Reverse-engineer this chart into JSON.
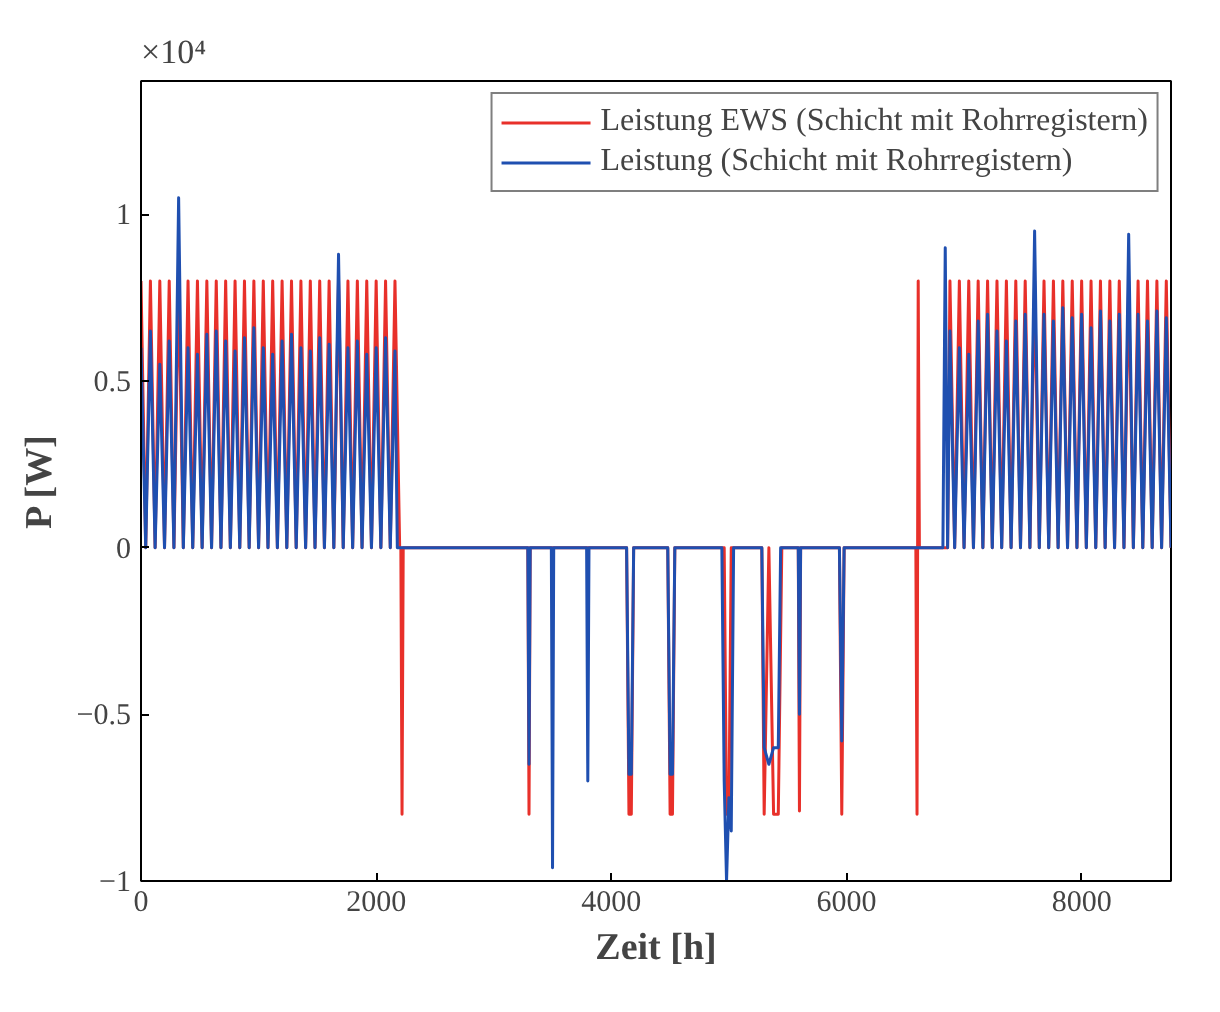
{
  "chart_data": {
    "type": "line",
    "xlabel": "Zeit [h]",
    "ylabel": "P [W]",
    "annotations": [
      "×10⁴"
    ],
    "xlim": [
      0,
      8760
    ],
    "ylim": [
      -1,
      1.4
    ],
    "xticks": [
      0,
      2000,
      4000,
      6000,
      8000
    ],
    "yticks": [
      -1,
      -0.5,
      0,
      0.5,
      1
    ],
    "grid": false,
    "legend": "top right",
    "series": [
      {
        "name": "Leistung EWS (Schicht mit Rohrregistern)",
        "color": "#e8302a",
        "x": [
          0,
          40,
          80,
          120,
          160,
          200,
          240,
          280,
          320,
          360,
          400,
          440,
          480,
          520,
          560,
          600,
          640,
          680,
          720,
          760,
          800,
          840,
          880,
          920,
          960,
          1000,
          1040,
          1080,
          1120,
          1160,
          1200,
          1240,
          1280,
          1320,
          1360,
          1400,
          1440,
          1480,
          1520,
          1560,
          1600,
          1640,
          1680,
          1720,
          1760,
          1800,
          1840,
          1880,
          1920,
          1960,
          2000,
          2040,
          2080,
          2120,
          2160,
          2200,
          2210,
          2220,
          2230,
          3290,
          3300,
          3310,
          4130,
          4150,
          4170,
          4190,
          4480,
          4500,
          4520,
          4540,
          4960,
          4980,
          5000,
          5020,
          5280,
          5300,
          5340,
          5380,
          5420,
          5450,
          5590,
          5600,
          5610,
          5940,
          5960,
          5980,
          6590,
          6600,
          6610,
          6620,
          6860,
          6880,
          6920,
          6960,
          7000,
          7040,
          7080,
          7120,
          7160,
          7200,
          7240,
          7280,
          7320,
          7360,
          7400,
          7440,
          7480,
          7520,
          7560,
          7600,
          7640,
          7680,
          7720,
          7760,
          7800,
          7840,
          7880,
          7920,
          7960,
          8000,
          8040,
          8080,
          8120,
          8160,
          8200,
          8240,
          8280,
          8320,
          8360,
          8400,
          8440,
          8480,
          8520,
          8560,
          8600,
          8640,
          8680,
          8720,
          8760
        ],
        "values": [
          0.8,
          0,
          0.8,
          0,
          0.8,
          0,
          0.8,
          0,
          0.8,
          0,
          0.8,
          0,
          0.8,
          0,
          0.8,
          0,
          0.8,
          0,
          0.8,
          0,
          0.8,
          0,
          0.8,
          0,
          0.8,
          0,
          0.8,
          0,
          0.8,
          0,
          0.8,
          0,
          0.8,
          0,
          0.8,
          0,
          0.8,
          0,
          0.8,
          0,
          0.8,
          0,
          0.8,
          0,
          0.8,
          0,
          0.8,
          0,
          0.8,
          0,
          0.8,
          0,
          0.8,
          0,
          0.8,
          0,
          0,
          -0.8,
          0,
          0,
          -0.8,
          0,
          0,
          -0.8,
          -0.8,
          0,
          0,
          -0.8,
          -0.8,
          0,
          0,
          -0.8,
          -0.8,
          0,
          0,
          -0.8,
          0,
          -0.8,
          -0.8,
          0,
          0,
          -0.79,
          0,
          0,
          -0.8,
          0,
          0,
          -0.8,
          0.8,
          0,
          0,
          0.8,
          0,
          0.8,
          0,
          0.8,
          0,
          0.8,
          0,
          0.8,
          0,
          0.8,
          0,
          0.8,
          0,
          0.8,
          0,
          0.8,
          0,
          0.8,
          0,
          0.8,
          0,
          0.8,
          0,
          0.8,
          0,
          0.8,
          0,
          0.8,
          0,
          0.8,
          0,
          0.8,
          0,
          0.8,
          0,
          0.8,
          0,
          0.8,
          0,
          0.8,
          0,
          0.8,
          0,
          0.8,
          0,
          0.8,
          0
        ]
      },
      {
        "name": "Leistung (Schicht mit Rohrregistern)",
        "color": "#1f4fb0",
        "x": [
          0,
          40,
          80,
          120,
          160,
          200,
          240,
          280,
          320,
          360,
          400,
          440,
          480,
          520,
          560,
          600,
          640,
          680,
          720,
          760,
          800,
          840,
          880,
          920,
          960,
          1000,
          1040,
          1080,
          1120,
          1160,
          1200,
          1240,
          1280,
          1320,
          1360,
          1400,
          1440,
          1480,
          1520,
          1560,
          1600,
          1640,
          1680,
          1720,
          1760,
          1800,
          1840,
          1880,
          1920,
          1960,
          2000,
          2040,
          2080,
          2120,
          2160,
          2180,
          3290,
          3300,
          3310,
          3490,
          3500,
          3510,
          3790,
          3800,
          3810,
          4130,
          4150,
          4170,
          4190,
          4480,
          4500,
          4520,
          4540,
          4940,
          4960,
          4980,
          5000,
          5020,
          5040,
          5280,
          5300,
          5340,
          5380,
          5420,
          5440,
          5590,
          5600,
          5610,
          5940,
          5960,
          5980,
          6820,
          6840,
          6860,
          6880,
          6920,
          6960,
          7000,
          7040,
          7080,
          7120,
          7160,
          7200,
          7240,
          7280,
          7320,
          7360,
          7400,
          7440,
          7480,
          7520,
          7560,
          7600,
          7640,
          7680,
          7720,
          7760,
          7800,
          7840,
          7880,
          7920,
          7960,
          8000,
          8040,
          8080,
          8120,
          8160,
          8200,
          8240,
          8280,
          8320,
          8360,
          8400,
          8440,
          8480,
          8520,
          8560,
          8600,
          8640,
          8680,
          8720,
          8760
        ],
        "values": [
          0.6,
          0,
          0.65,
          0,
          0.55,
          0,
          0.62,
          0,
          1.05,
          0,
          0.6,
          0,
          0.58,
          0,
          0.64,
          0,
          0.65,
          0,
          0.62,
          0,
          0.59,
          0,
          0.63,
          0,
          0.66,
          0,
          0.6,
          0,
          0.58,
          0,
          0.62,
          0,
          0.64,
          0,
          0.6,
          0,
          0.59,
          0,
          0.63,
          0,
          0.61,
          0,
          0.88,
          0,
          0.6,
          0,
          0.62,
          0,
          0.58,
          0,
          0.6,
          0,
          0.63,
          0,
          0.59,
          0,
          0,
          -0.65,
          0,
          0,
          -0.96,
          0,
          0,
          -0.7,
          0,
          0,
          -0.68,
          -0.68,
          0,
          0,
          -0.68,
          -0.68,
          0,
          0,
          -0.7,
          -1,
          -0.75,
          -0.85,
          0,
          0,
          -0.6,
          -0.65,
          -0.6,
          -0.6,
          0,
          0,
          -0.5,
          0,
          0,
          -0.58,
          0,
          0,
          0.9,
          0,
          0.65,
          0,
          0.6,
          0,
          0.58,
          0,
          0.68,
          0,
          0.7,
          0,
          0.65,
          0,
          0.62,
          0,
          0.68,
          0,
          0.7,
          0,
          0.95,
          0,
          0.7,
          0,
          0.68,
          0,
          0.72,
          0,
          0.69,
          0,
          0.7,
          0,
          0.66,
          0,
          0.71,
          0,
          0.68,
          0,
          0.7,
          0,
          0.94,
          0,
          0.7,
          0,
          0.68,
          0,
          0.71,
          0,
          0.69,
          0
        ]
      }
    ]
  }
}
